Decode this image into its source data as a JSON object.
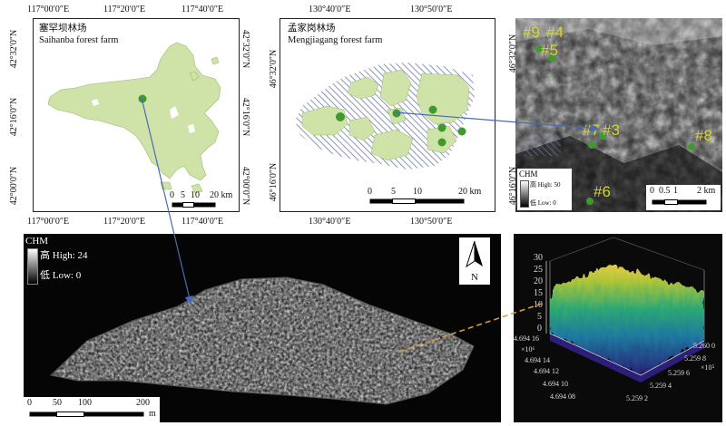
{
  "saihanba": {
    "title_cn": "塞罕坝林场",
    "title_en": "Saihanba forest farm",
    "lon_ticks": [
      "117°00′0″E",
      "117°20′0″E",
      "117°40′0″E"
    ],
    "lat_ticks": [
      "42°32′0″N",
      "42°16′0″N",
      "42°00′0″N"
    ],
    "scale_numbers": [
      "0",
      "5",
      "10",
      "20 km"
    ],
    "fill_color": "#cfe3a8"
  },
  "mengjiagang": {
    "title_cn": "孟家岗林场",
    "title_en": "Mengjiagang forest farm",
    "lon_ticks": [
      "130°40′0″E",
      "130°50′0″E"
    ],
    "lat_ticks": [
      "46°32′0″N",
      "46°16′0″N"
    ],
    "scale_numbers": [
      "0",
      "5",
      "10",
      "20 km"
    ],
    "fill_color": "#cfe3a8",
    "hatch_color": "#6e78a8"
  },
  "chm_small": {
    "plot_labels": [
      "#9",
      "#4",
      "#5",
      "#7",
      "#3",
      "#8",
      "#6"
    ],
    "legend_title": "CHM",
    "legend_high": "高 High: 50",
    "legend_low": "低 Low: 0",
    "scale_numbers": [
      "0",
      "0.5",
      "1",
      "2 km"
    ],
    "label_color": "#d8d62a"
  },
  "chm_large": {
    "legend_title": "CHM",
    "legend_high": "高 High: 24",
    "legend_low": "低 Low: 0",
    "north": "N",
    "scale_numbers": [
      "0",
      "50",
      "100",
      "200"
    ],
    "scale_unit": "m"
  },
  "surface3d": {
    "z_ticks": [
      "30",
      "25",
      "20",
      "15",
      "10",
      "5",
      "0"
    ],
    "y_ticks": [
      "4.694 16",
      "4.694 14",
      "4.694 12",
      "4.694 10",
      "4.694 08"
    ],
    "y_exp": "×10⁶",
    "x_ticks": [
      "5.260 0",
      "5.259 8",
      "5.259 6",
      "5.259 4",
      "5.259 2"
    ],
    "x_exp": "×10⁵"
  },
  "colors": {
    "plot_dot": "#3f9a2e",
    "connector": "#4a6bb5",
    "dashed_connector": "#d99a3c"
  }
}
